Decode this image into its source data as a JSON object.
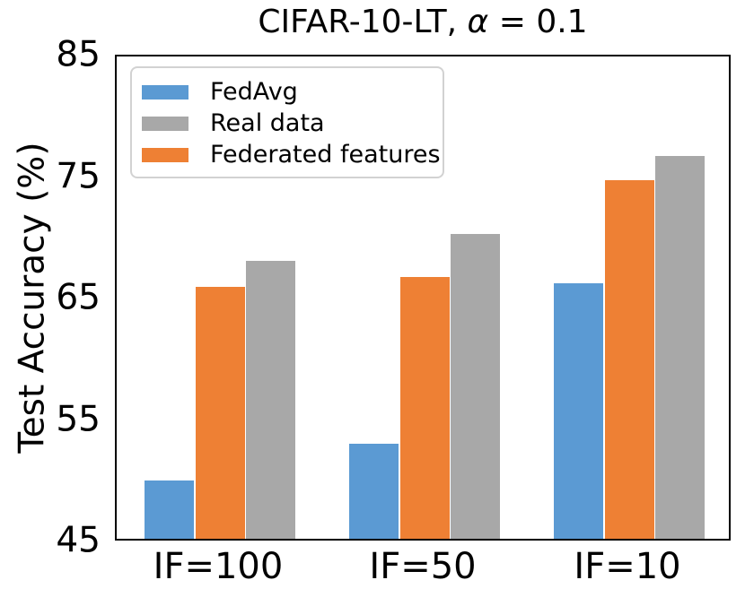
{
  "figure_title": {
    "prefix": "CIFAR-10-LT, ",
    "alpha": "α",
    "suffix": " = 0.1"
  },
  "chart_data": {
    "type": "bar",
    "title": "CIFAR-10-LT, α = 0.1",
    "xlabel": "",
    "ylabel": "Test Accuracy (%)",
    "ylim": [
      45,
      85
    ],
    "y_ticks": [
      45,
      55,
      65,
      75,
      85
    ],
    "grid": false,
    "legend_position": "upper left",
    "categories": [
      "IF=100",
      "IF=50",
      "IF=10"
    ],
    "series": [
      {
        "name": "FedAvg",
        "color": "#5b9ad3",
        "values": [
          50.0,
          53.0,
          66.2
        ]
      },
      {
        "name": "Federated features",
        "color": "#ee8034",
        "values": [
          65.9,
          66.7,
          74.7
        ]
      },
      {
        "name": "Real data",
        "color": "#a8a8a8",
        "values": [
          68.1,
          70.3,
          76.7
        ]
      }
    ],
    "legend_order": [
      "FedAvg",
      "Real data",
      "Federated features"
    ]
  }
}
